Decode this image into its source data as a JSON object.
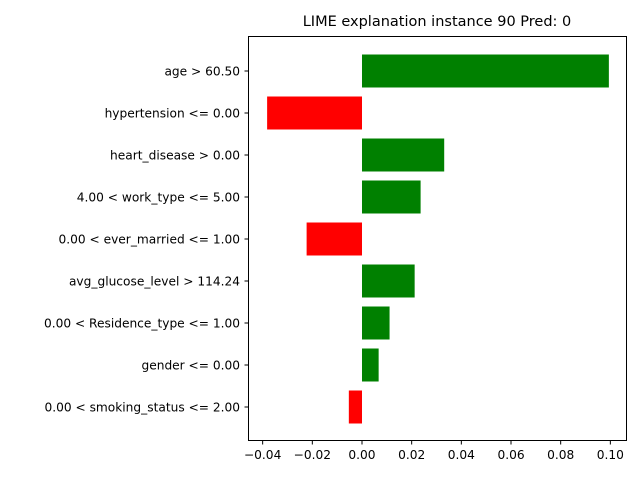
{
  "chart_data": {
    "type": "bar",
    "orientation": "horizontal",
    "title": "LIME explanation instance 90 Pred: 0",
    "xlabel": "",
    "ylabel": "",
    "xlim": [
      -0.0459,
      0.1063
    ],
    "x_ticks": [
      "−0.04",
      "−0.02",
      "0.00",
      "0.02",
      "0.04",
      "0.06",
      "0.08",
      "0.10"
    ],
    "x_tick_values": [
      -0.04,
      -0.02,
      0.0,
      0.02,
      0.04,
      0.06,
      0.08,
      0.1
    ],
    "grid": false,
    "legend": "none",
    "colors": {
      "positive": "#008000",
      "negative": "#ff0000"
    },
    "categories": [
      "age > 60.50",
      "hypertension <= 0.00",
      "heart_disease > 0.00",
      "4.00 < work_type <= 5.00",
      "0.00 < ever_married <= 1.00",
      "avg_glucose_level > 114.24",
      "0.00 < Residence_type <= 1.00",
      "gender <= 0.00",
      "0.00 < smoking_status <= 2.00"
    ],
    "values": [
      0.0994,
      -0.0382,
      0.0331,
      0.0236,
      -0.0223,
      0.0212,
      0.0111,
      0.0067,
      -0.0053
    ]
  }
}
